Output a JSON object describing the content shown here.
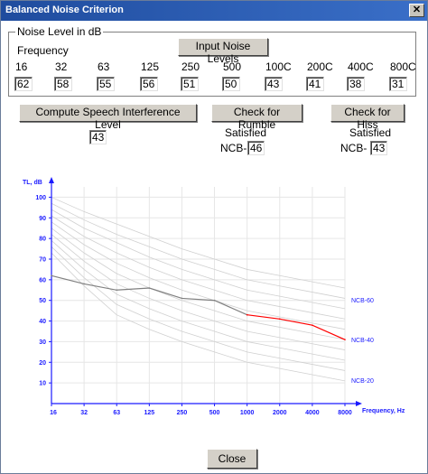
{
  "window": {
    "title": "Balanced Noise Criterion"
  },
  "noise_group": {
    "title": "Noise Level in dB",
    "frequency_label": "Frequency",
    "input_button": "Input Noise Levels"
  },
  "frequencies": [
    "16",
    "32",
    "63",
    "125",
    "250",
    "500",
    "100C",
    "200C",
    "400C",
    "800C"
  ],
  "levels": [
    "62",
    "58",
    "55",
    "56",
    "51",
    "50",
    "43",
    "41",
    "38",
    "31"
  ],
  "speech": {
    "button": "Compute Speech Interference Level",
    "value": "43"
  },
  "rumble": {
    "button": "Check for Rumble",
    "status": "Satisfied",
    "ncb_label": "NCB-",
    "ncb_value": "46"
  },
  "hiss": {
    "button": "Check for Hiss",
    "status": "Satisfied",
    "ncb_label": "NCB-",
    "ncb_value": "43"
  },
  "close_button": "Close",
  "chart_data": {
    "type": "line",
    "ylabel": "TL, dB",
    "xlabel": "Frequency, Hz",
    "x_tick_labels": [
      "16",
      "32",
      "63",
      "125",
      "250",
      "500",
      "1000",
      "2000",
      "4000",
      "8000"
    ],
    "y_ticks": [
      10,
      20,
      30,
      40,
      50,
      60,
      70,
      80,
      90,
      100
    ],
    "ylim": [
      0,
      105
    ],
    "grid": true,
    "curve_labels": [
      "NCB-60",
      "NCB-40",
      "NCB-20"
    ],
    "series": [
      {
        "color": "#808080",
        "values": [
          62,
          58,
          55,
          56,
          51,
          50,
          43,
          null,
          null,
          null
        ]
      },
      {
        "color": "#ff0000",
        "values": [
          null,
          null,
          null,
          null,
          null,
          null,
          43,
          41,
          38,
          31
        ]
      }
    ],
    "reference_curves": [
      [
        100,
        93,
        87,
        81,
        75,
        70,
        65,
        62,
        59,
        56
      ],
      [
        97,
        89,
        82,
        76,
        70,
        65,
        60,
        57,
        54,
        51
      ],
      [
        94,
        85,
        78,
        71,
        65,
        60,
        55,
        52,
        49,
        46
      ],
      [
        91,
        81,
        73,
        66,
        60,
        55,
        50,
        47,
        44,
        41
      ],
      [
        88,
        77,
        68,
        61,
        55,
        50,
        45,
        42,
        39,
        36
      ],
      [
        85,
        73,
        63,
        56,
        50,
        45,
        40,
        37,
        34,
        31
      ],
      [
        82,
        69,
        58,
        51,
        45,
        40,
        35,
        32,
        29,
        26
      ],
      [
        79,
        65,
        53,
        46,
        40,
        35,
        30,
        27,
        24,
        21
      ],
      [
        76,
        61,
        48,
        41,
        35,
        30,
        25,
        22,
        19,
        16
      ],
      [
        73,
        57,
        43,
        36,
        30,
        25,
        20,
        17,
        14,
        11
      ]
    ]
  }
}
